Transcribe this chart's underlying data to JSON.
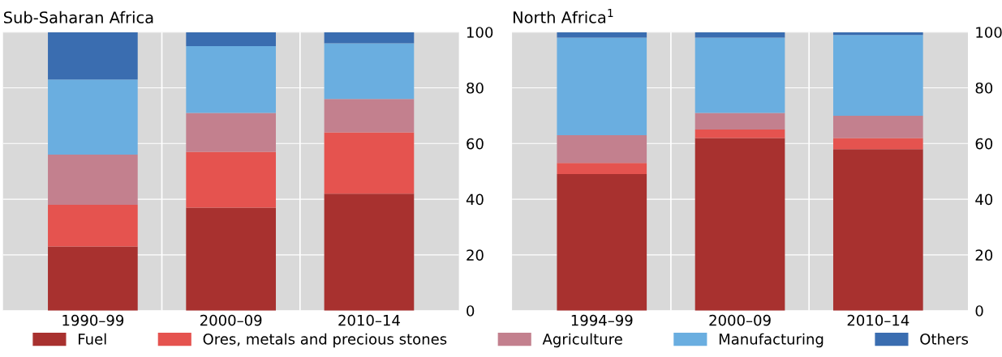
{
  "chart_data": [
    {
      "type": "bar",
      "title": "Sub-Saharan Africa",
      "categories": [
        "1990–99",
        "2000–09",
        "2010–14"
      ],
      "stacked": true,
      "ylim": [
        0,
        100
      ],
      "yticks": [
        0,
        20,
        40,
        60,
        80,
        100
      ],
      "grid": true,
      "legend": "bottom",
      "series": [
        {
          "name": "Fuel",
          "color": "#a8312f",
          "values": [
            23,
            37,
            42
          ]
        },
        {
          "name": "Ores, metals and precious stones",
          "color": "#e5534f",
          "values": [
            15,
            20,
            22
          ]
        },
        {
          "name": "Agriculture",
          "color": "#c3808e",
          "values": [
            18,
            14,
            12
          ]
        },
        {
          "name": "Manufacturing",
          "color": "#6aaee0",
          "values": [
            27,
            24,
            20
          ]
        },
        {
          "name": "Others",
          "color": "#3a6db0",
          "values": [
            17,
            5,
            4
          ]
        }
      ]
    },
    {
      "type": "bar",
      "title": "North Africa$^{1}$",
      "categories": [
        "1994–99",
        "2000–09",
        "2010–14"
      ],
      "stacked": true,
      "ylim": [
        0,
        100
      ],
      "yticks": [
        0,
        20,
        40,
        60,
        80,
        100
      ],
      "grid": true,
      "series": [
        {
          "color": "#a8312f",
          "values": [
            49,
            62,
            58
          ]
        },
        {
          "color": "#e5534f",
          "values": [
            4,
            3,
            4
          ]
        },
        {
          "color": "#c3808e",
          "values": [
            10,
            6,
            8
          ]
        },
        {
          "color": "#6aaee0",
          "values": [
            35,
            27,
            29
          ]
        },
        {
          "color": "#3a6db0",
          "values": [
            2,
            2,
            1
          ]
        }
      ]
    }
  ]
}
